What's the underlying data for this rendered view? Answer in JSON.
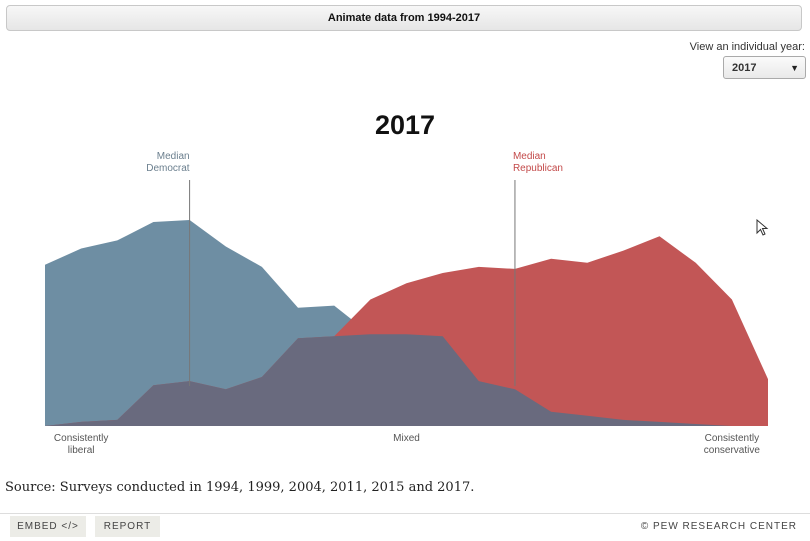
{
  "controls": {
    "animate_label": "Animate data from 1994-2017",
    "year_label": "View an individual year:",
    "year_selected": "2017",
    "year_caret": "▼"
  },
  "chart_data": {
    "type": "area",
    "title": "2017",
    "x": [
      0,
      5,
      10,
      15,
      20,
      25,
      30,
      35,
      40,
      45,
      50,
      55,
      60,
      65,
      70,
      75,
      80,
      85,
      90,
      95,
      100
    ],
    "x_axis_ticks": {
      "Consistently liberal": 0,
      "Mixed": 50,
      "Consistently conservative": 100
    },
    "ylim": [
      0,
      100
    ],
    "grid": false,
    "series": [
      {
        "name": "Democrat",
        "color": "#6e8ea3",
        "values": [
          79,
          87,
          91,
          100,
          101,
          88,
          78,
          58,
          59,
          45,
          45,
          44,
          22,
          18,
          7,
          5,
          3,
          2,
          1,
          0,
          0
        ],
        "median_label": "Median\nDemocrat",
        "median_x": 20
      },
      {
        "name": "Republican",
        "color": "#c25656",
        "values": [
          0,
          2,
          3,
          20,
          22,
          18,
          24,
          43,
          44,
          62,
          70,
          75,
          78,
          77,
          82,
          80,
          86,
          93,
          80,
          62,
          23
        ],
        "median_label": "Median\nRepublican",
        "median_x": 65
      }
    ],
    "overlap_color": "#696a7e",
    "x_labels": [
      {
        "text": "Consistently\nliberal",
        "x": 5
      },
      {
        "text": "Mixed",
        "x": 50
      },
      {
        "text": "Consistently\nconservative",
        "x": 95
      }
    ]
  },
  "source": "Source: Surveys conducted in 1994, 1999, 2004, 2011, 2015 and 2017.",
  "footer": {
    "embed_label": "EMBED </>",
    "report_label": "REPORT",
    "brand": "© PEW RESEARCH CENTER"
  }
}
